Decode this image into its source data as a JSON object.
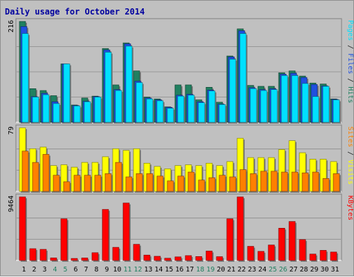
{
  "chart_data": {
    "type": "bar",
    "title": "Daily usage for October 2014",
    "categories": [
      "1",
      "2",
      "3",
      "4",
      "5",
      "6",
      "7",
      "8",
      "9",
      "10",
      "11",
      "12",
      "13",
      "14",
      "15",
      "16",
      "17",
      "18",
      "19",
      "20",
      "21",
      "22",
      "23",
      "24",
      "25",
      "26",
      "27",
      "28",
      "29",
      "30",
      "31"
    ],
    "weekend_days": [
      "4",
      "5",
      "11",
      "12",
      "18",
      "19",
      "25",
      "26"
    ],
    "panels": [
      {
        "id": "traffic",
        "scale_label": "216",
        "ymax": 216,
        "label_parts": [
          {
            "text": "Pages",
            "color": "#00e0ff"
          },
          {
            "text": " / ",
            "color": "#202020"
          },
          {
            "text": "Files",
            "color": "#2050e0"
          },
          {
            "text": " / ",
            "color": "#202020"
          },
          {
            "text": "Hits",
            "color": "#208060"
          }
        ],
        "series": [
          {
            "key": "hits",
            "color": "#208060",
            "values": [
              216,
              72,
              68,
              57,
              125,
              37,
              52,
              56,
              158,
              80,
              170,
              110,
              54,
              50,
              33,
              80,
              80,
              48,
              75,
              43,
              142,
              200,
              79,
              77,
              77,
              106,
              110,
              99,
              84,
              82,
              50
            ]
          },
          {
            "key": "files",
            "color": "#2050e0",
            "values": [
              205,
              55,
              62,
              44,
              125,
              36,
              45,
              55,
              155,
              70,
              168,
              88,
              52,
              48,
              32,
              58,
              60,
              44,
              69,
              39,
              140,
              196,
              74,
              70,
              72,
              103,
              105,
              96,
              81,
              78,
              49
            ]
          },
          {
            "key": "pages",
            "color": "#00e0ff",
            "values": [
              190,
              54,
              59,
              40,
              125,
              35,
              44,
              54,
              150,
              68,
              163,
              85,
              50,
              46,
              30,
              56,
              58,
              42,
              67,
              38,
              135,
              190,
              72,
              68,
              70,
              100,
              100,
              83,
              55,
              77,
              48
            ]
          }
        ]
      },
      {
        "id": "visits",
        "scale_label": "79",
        "ymax": 79,
        "label_parts": [
          {
            "text": "Sites",
            "color": "#ff8000"
          },
          {
            "text": " / ",
            "color": "#202020"
          },
          {
            "text": "Visits",
            "color": "#ffff00"
          }
        ],
        "series": [
          {
            "key": "visits",
            "color": "#ffff00",
            "values": [
              79,
              53,
              55,
              32,
              33,
              30,
              36,
              36,
              43,
              53,
              51,
              53,
              35,
              31,
              28,
              32,
              33,
              32,
              35,
              32,
              37,
              66,
              42,
              42,
              42,
              52,
              63,
              48,
              40,
              40,
              37
            ]
          },
          {
            "key": "sites",
            "color": "#ff8000",
            "values": [
              50,
              36,
              46,
              20,
              12,
              20,
              20,
              20,
              22,
              36,
              18,
              22,
              22,
              19,
              13,
              19,
              24,
              14,
              17,
              20,
              18,
              27,
              22,
              25,
              25,
              24,
              24,
              23,
              24,
              16,
              22
            ]
          }
        ]
      },
      {
        "id": "kbytes",
        "scale_label": "9464",
        "ymax": 9464,
        "label_parts": [
          {
            "text": "KBytes",
            "color": "#ff0000"
          }
        ],
        "series": [
          {
            "key": "kbytes",
            "color": "#ff0000",
            "values": [
              9464,
              1750,
              1650,
              380,
              6200,
              300,
              370,
              1150,
              7600,
              1950,
              8550,
              2400,
              800,
              620,
              330,
              530,
              720,
              580,
              1400,
              560,
              6200,
              9464,
              2100,
              1350,
              2300,
              4800,
              5800,
              3100,
              950,
              1500,
              1250
            ]
          }
        ]
      }
    ]
  }
}
